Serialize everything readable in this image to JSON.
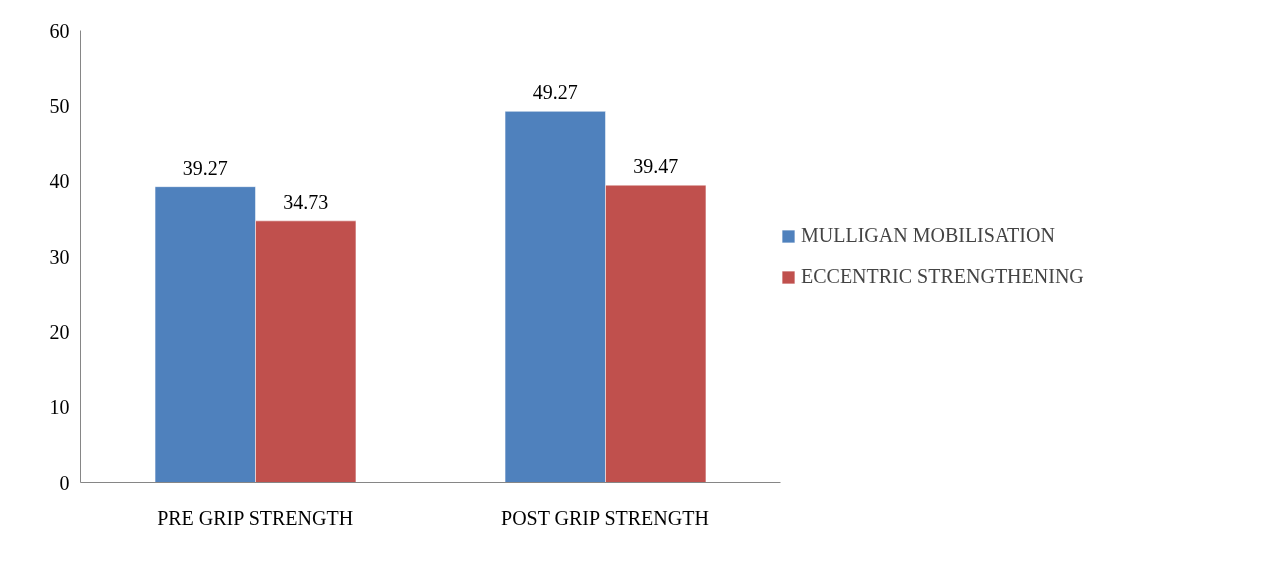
{
  "chart_data": {
    "type": "bar",
    "categories": [
      "PRE GRIP STRENGTH",
      "POST GRIP STRENGTH"
    ],
    "series": [
      {
        "name": "MULLIGAN MOBILISATION",
        "color": "#4f81bd",
        "values": [
          39.27,
          49.27
        ]
      },
      {
        "name": "ECCENTRIC STRENGTHENING",
        "color": "#c0504d",
        "values": [
          34.73,
          39.47
        ]
      }
    ],
    "ylim": [
      0,
      60
    ],
    "yticks": [
      0,
      10,
      20,
      30,
      40,
      50,
      60
    ],
    "grid": false,
    "legend": "right",
    "data_labels": true
  }
}
